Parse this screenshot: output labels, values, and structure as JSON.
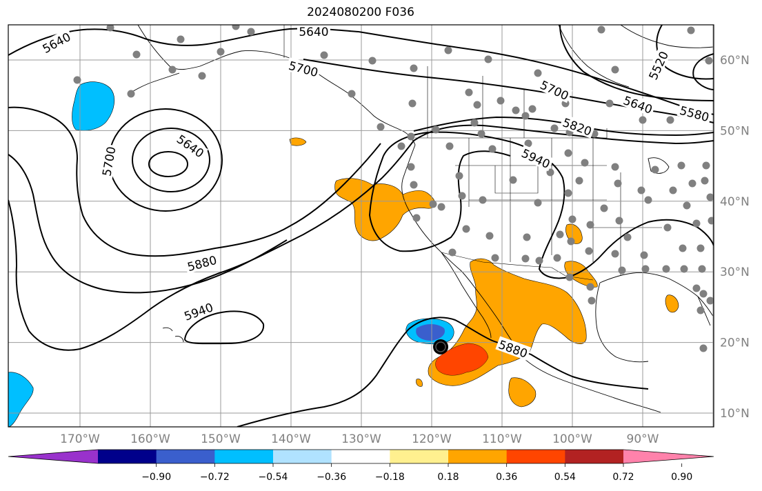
{
  "title": "2024080200 F036",
  "latitude_labels": [
    {
      "lat": 60,
      "text": "60°N"
    },
    {
      "lat": 50,
      "text": "50°N"
    },
    {
      "lat": 40,
      "text": "40°N"
    },
    {
      "lat": 30,
      "text": "30°N"
    },
    {
      "lat": 20,
      "text": "20°N"
    },
    {
      "lat": 10,
      "text": "10°N"
    }
  ],
  "longitude_labels": [
    {
      "lon": -170,
      "text": "170°W"
    },
    {
      "lon": -160,
      "text": "160°W"
    },
    {
      "lon": -150,
      "text": "150°W"
    },
    {
      "lon": -140,
      "text": "140°W"
    },
    {
      "lon": -130,
      "text": "130°W"
    },
    {
      "lon": -120,
      "text": "120°W"
    },
    {
      "lon": -110,
      "text": "110°W"
    },
    {
      "lon": -100,
      "text": "100°W"
    },
    {
      "lon": -90,
      "text": "90°W"
    }
  ],
  "contour_labels": [
    "5640",
    "5640",
    "5700",
    "5640",
    "5700",
    "5520",
    "5640",
    "5580",
    "5700",
    "5820",
    "5940",
    "5880",
    "5940",
    "5880"
  ],
  "colorbar": {
    "colors": [
      "#9932cc",
      "#00008b",
      "#3a5fcd",
      "#00bfff",
      "#b0e2ff",
      "#ffffff",
      "#fff08f",
      "#ffa500",
      "#ff4500",
      "#b22222",
      "#ff82ab"
    ],
    "tick_labels": [
      "−0.90",
      "−0.72",
      "−0.54",
      "−0.36",
      "−0.18",
      "0.18",
      "0.36",
      "0.54",
      "0.72",
      "0.90"
    ]
  },
  "colors": {
    "land_outline": "#000000",
    "grid": "#999999",
    "station_dot": "#808080",
    "contour": "#000000"
  },
  "station_count": 90
}
